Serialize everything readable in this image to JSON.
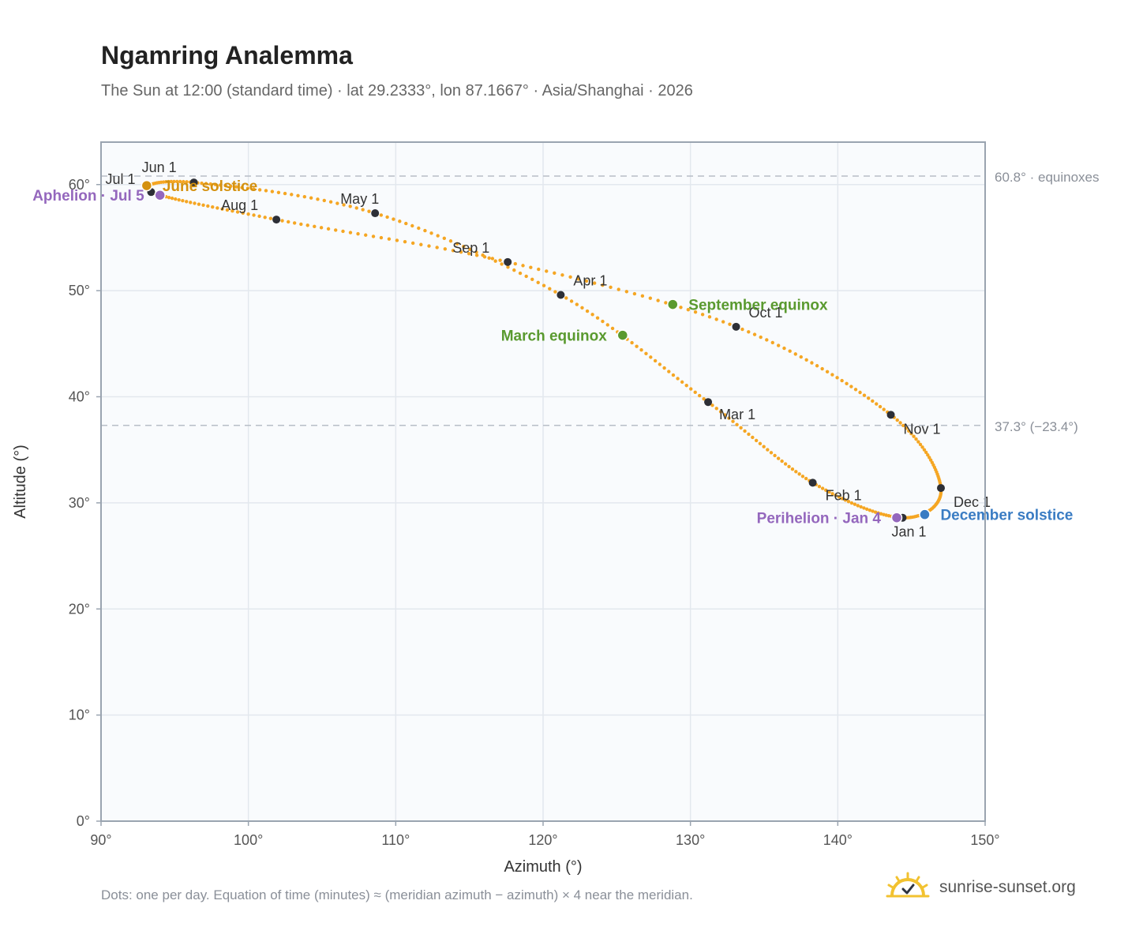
{
  "title": "Ngamring Analemma",
  "subtitle": "The Sun at 12:00 (standard time) · lat 29.2333°, lon 87.1667° · Asia/Shanghai · 2026",
  "footnote": "Dots: one per day. Equation of time (minutes) ≈ (meridian azimuth − azimuth) × 4 near the meridian.",
  "brand": {
    "text": "sunrise-sunset.org",
    "icon": "sun-logo-icon"
  },
  "colors": {
    "path": "#f5a623",
    "month_marker": "#2d2f36",
    "solstice_june": "#d4910f",
    "solstice_december": "#3a7cc3",
    "equinox": "#5a9a2f",
    "apsis": "#9467bd",
    "plot_bg": "#f9fbfd",
    "grid": "#e3e8ee",
    "reference_line": "#b8bec7"
  },
  "chart_data": {
    "type": "scatter",
    "xlabel": "Azimuth (°)",
    "ylabel": "Altitude (°)",
    "xlim": [
      90,
      150
    ],
    "ylim": [
      0,
      64
    ],
    "x_ticks": [
      90,
      100,
      110,
      120,
      130,
      140,
      150
    ],
    "y_ticks": [
      0,
      10,
      20,
      30,
      40,
      50,
      60
    ],
    "x_tick_labels": [
      "90°",
      "100°",
      "110°",
      "120°",
      "130°",
      "140°",
      "150°"
    ],
    "y_tick_labels": [
      "0°",
      "10°",
      "20°",
      "30°",
      "40°",
      "50°",
      "60°"
    ],
    "grid": true,
    "reference_lines": [
      {
        "y": 60.8,
        "label": "60.8° · equinoxes"
      },
      {
        "y": 37.3,
        "label": "37.3° (−23.4°)"
      }
    ],
    "month_markers": [
      {
        "label": "Jan 1",
        "doy": 1,
        "x": 144.4,
        "y": 28.6
      },
      {
        "label": "Feb 1",
        "doy": 32,
        "x": 138.3,
        "y": 31.9
      },
      {
        "label": "Mar 1",
        "doy": 60,
        "x": 131.2,
        "y": 39.5
      },
      {
        "label": "Apr 1",
        "doy": 91,
        "x": 121.2,
        "y": 49.6
      },
      {
        "label": "May 1",
        "doy": 121,
        "x": 108.6,
        "y": 57.3
      },
      {
        "label": "Jun 1",
        "doy": 152,
        "x": 96.3,
        "y": 60.2
      },
      {
        "label": "Jul 1",
        "doy": 182,
        "x": 93.4,
        "y": 59.3
      },
      {
        "label": "Aug 1",
        "doy": 213,
        "x": 101.9,
        "y": 56.7
      },
      {
        "label": "Sep 1",
        "doy": 244,
        "x": 117.6,
        "y": 52.7
      },
      {
        "label": "Oct 1",
        "doy": 274,
        "x": 133.1,
        "y": 46.6
      },
      {
        "label": "Nov 1",
        "doy": 305,
        "x": 143.6,
        "y": 38.3
      },
      {
        "label": "Dec 1",
        "doy": 335,
        "x": 147.0,
        "y": 31.4
      }
    ],
    "events": [
      {
        "label": "March equinox",
        "doy": 79,
        "x": 125.4,
        "y": 45.8,
        "kind": "equinox"
      },
      {
        "label": "June solstice",
        "doy": 172,
        "x": 93.1,
        "y": 59.9,
        "kind": "solstice_june"
      },
      {
        "label": "September equinox",
        "doy": 265,
        "x": 128.8,
        "y": 48.7,
        "kind": "equinox"
      },
      {
        "label": "December solstice",
        "doy": 355,
        "x": 145.9,
        "y": 28.9,
        "kind": "solstice_december"
      },
      {
        "label": "Aphelion · Jul 5",
        "doy": 186,
        "x": 94.0,
        "y": 59.0,
        "kind": "apsis"
      },
      {
        "label": "Perihelion · Jan 4",
        "doy": 4,
        "x": 144.0,
        "y": 28.6,
        "kind": "apsis"
      }
    ]
  }
}
